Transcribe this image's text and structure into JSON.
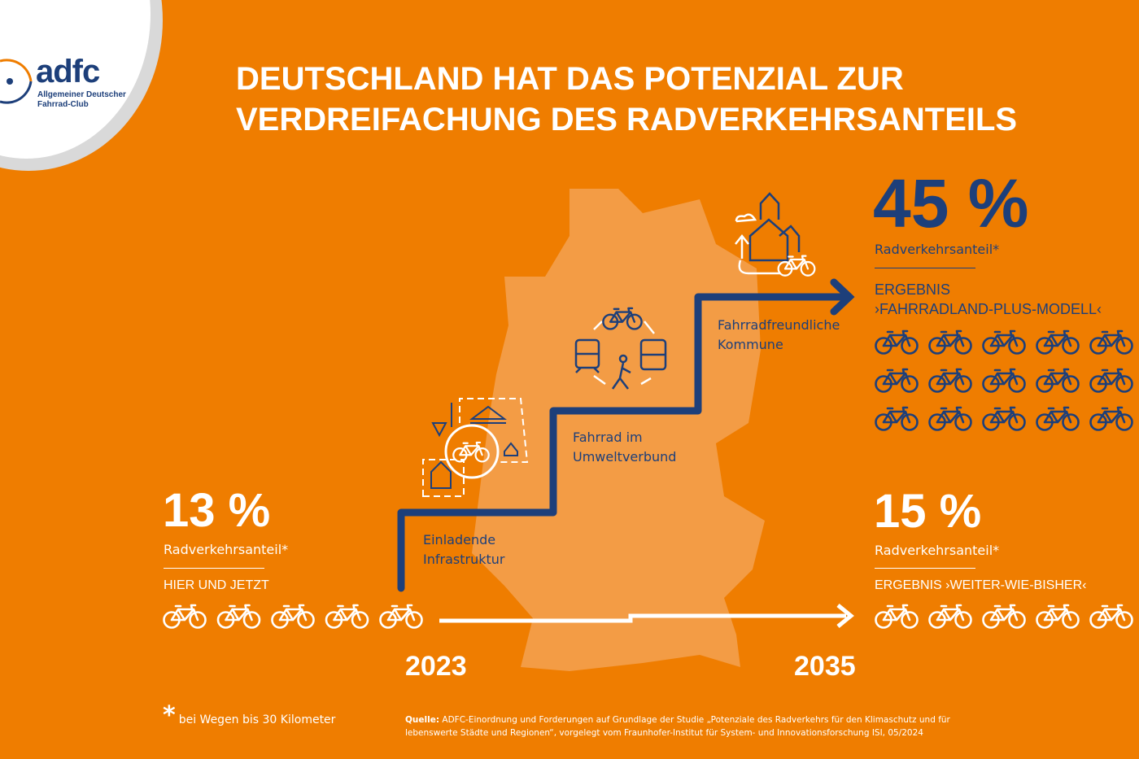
{
  "logo": {
    "wordmark": "adfc",
    "subtitle": "Allgemeiner Deutscher Fahrrad-Club"
  },
  "title": [
    "DEUTSCHLAND HAT DAS POTENZIAL ZUR",
    "VERDREIFACHUNG DES RADVERKEHRSANTEILS"
  ],
  "colors": {
    "background": "#ef7d00",
    "map": "#f39c45",
    "navy": "#1d3f7a",
    "white": "#ffffff"
  },
  "today": {
    "value": "13 %",
    "label": "Radverkehrsanteil*",
    "caption": "HIER UND JETZT",
    "bikes": 5,
    "year": "2023"
  },
  "plus": {
    "value": "45 %",
    "label": "Radverkehrsanteil*",
    "caption": [
      "ERGEBNIS",
      "›FAHRRADLAND-PLUS-MODELL‹"
    ],
    "bikes": 15
  },
  "baseline": {
    "value": "15 %",
    "label": "Radverkehrsanteil*",
    "caption": "ERGEBNIS ›WEITER-WIE-BISHER‹",
    "bikes": 5,
    "year": "2035"
  },
  "steps": [
    {
      "line1": "Einladende",
      "line2": "Infrastruktur"
    },
    {
      "line1": "Fahrrad im",
      "line2": "Umweltverbund"
    },
    {
      "line1": "Fahrradfreundliche",
      "line2": "Kommune"
    }
  ],
  "footnote": {
    "mark": "*",
    "text": "bei Wegen bis 30 Kilometer"
  },
  "source": {
    "label": "Quelle:",
    "text": " ADFC-Einordnung und Forderungen auf Grundlage der Studie „Potenziale des Radverkehrs für den Klimaschutz und für lebenswerte Städte und Regionen“, vorgelegt vom Fraunhofer-Institut für System- und Innovationsforschung ISI, 05/2024"
  }
}
